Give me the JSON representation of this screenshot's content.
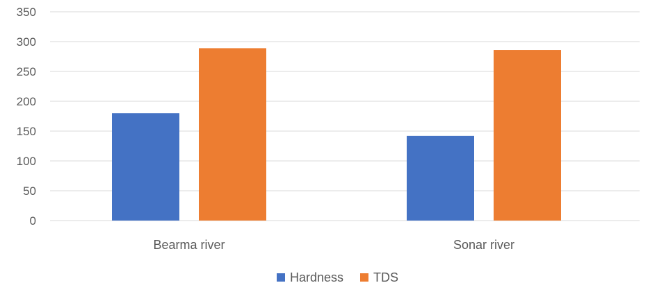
{
  "chart_data": {
    "type": "bar",
    "title": "",
    "xlabel": "",
    "ylabel": "",
    "categories": [
      "Bearma river",
      "Sonar river"
    ],
    "series": [
      {
        "name": "Hardness",
        "values": [
          180,
          142
        ],
        "color": "#4472C4"
      },
      {
        "name": "TDS",
        "values": [
          289,
          286
        ],
        "color": "#ED7D31"
      }
    ],
    "ylim": [
      0,
      350
    ],
    "yticks": [
      "0",
      "50",
      "100",
      "150",
      "200",
      "250",
      "300",
      "350"
    ],
    "grid": true,
    "gridline_color": "#D9D9D9",
    "legend_position": "bottom"
  }
}
